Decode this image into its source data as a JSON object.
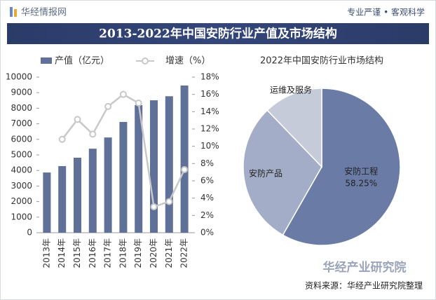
{
  "header": {
    "site": "华经情报网",
    "slogan": "专业严谨 • 客观科学"
  },
  "title": "2013-2022年中国安防行业产值及市场结构",
  "source": "资料来源：华经产业研究院整理",
  "watermark": "华经产业研究院",
  "chart_data": [
    {
      "type": "bar",
      "categories": [
        "2013年",
        "2014年",
        "2015年",
        "2016年",
        "2017年",
        "2018年",
        "2019年",
        "2020年",
        "2021年",
        "2022年"
      ],
      "series": [
        {
          "name": "产值（亿元）",
          "type": "bar",
          "color": "#5f7198",
          "values": [
            3870,
            4280,
            4820,
            5400,
            6120,
            7120,
            8200,
            8510,
            8770,
            9460
          ]
        },
        {
          "name": "增速（%）",
          "type": "line",
          "color": "#c8c8c8",
          "axis": "y2",
          "values": [
            null,
            10.8,
            13.1,
            11.4,
            14.6,
            16.0,
            15.0,
            3.0,
            3.6,
            7.3
          ]
        }
      ],
      "ylim": [
        0,
        10000
      ],
      "yticks": [
        0,
        1000,
        2000,
        3000,
        4000,
        5000,
        6000,
        7000,
        8000,
        9000,
        10000
      ],
      "y2lim": [
        0,
        18
      ],
      "y2ticks": [
        {
          "value": 0,
          "label": "0%"
        },
        {
          "value": 2,
          "label": "2%"
        },
        {
          "value": 4,
          "label": "4%"
        },
        {
          "value": 6,
          "label": "6%"
        },
        {
          "value": 8,
          "label": "8%"
        },
        {
          "value": 10,
          "label": "10%"
        },
        {
          "value": 12,
          "label": "12%"
        },
        {
          "value": 14,
          "label": "14%"
        },
        {
          "value": 16,
          "label": "16%"
        },
        {
          "value": 18,
          "label": "18%"
        }
      ]
    },
    {
      "type": "pie",
      "title": "2022年中国安防行业市场结构",
      "categories": [
        "安防工程",
        "安防产品",
        "运维及服务"
      ],
      "values": [
        58.25,
        29.55,
        12.2
      ],
      "value_labels": [
        "58.25%",
        null,
        null
      ],
      "colors": [
        "#6a7ba5",
        "#a3adc7",
        "#c6cbd9"
      ]
    }
  ]
}
